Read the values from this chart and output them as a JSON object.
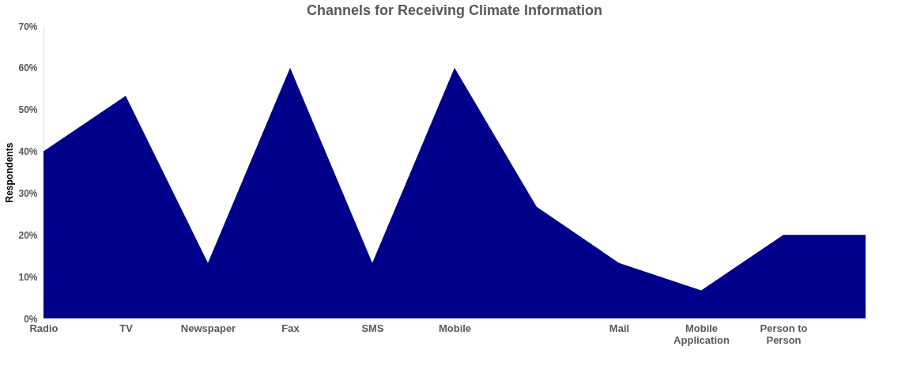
{
  "chart_data": {
    "type": "area",
    "title": "Channels for Receiving Climate Information",
    "ylabel": "Respondents",
    "categories": [
      "Radio",
      "TV",
      "Newspaper",
      "Fax",
      "SMS",
      "Mobile",
      null,
      "Mail",
      "Mobile Application",
      "Person to Person",
      null
    ],
    "series": [
      {
        "color": "#00008b",
        "values": [
          40,
          53.3,
          13.3,
          60,
          13.3,
          60,
          26.7,
          13.3,
          6.7,
          20,
          20
        ]
      }
    ],
    "ylim": [
      0,
      70
    ],
    "yticks": [
      {
        "value": 0,
        "label": "0%"
      },
      {
        "value": 10,
        "label": "10%"
      },
      {
        "value": 20,
        "label": "20%"
      },
      {
        "value": 30,
        "label": "30%"
      },
      {
        "value": 40,
        "label": "40%"
      },
      {
        "value": 50,
        "label": "50%"
      },
      {
        "value": 60,
        "label": "60%"
      },
      {
        "value": 70,
        "label": "70%"
      }
    ],
    "grid": false
  }
}
